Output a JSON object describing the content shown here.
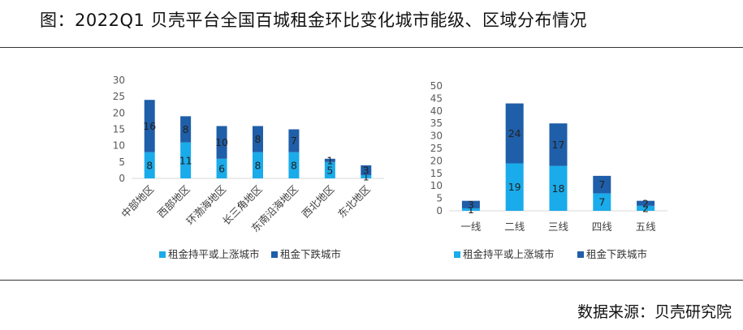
{
  "title": "图：2022Q1 贝壳平台全国百城租金环比变化城市能级、区域分布情况",
  "source": "数据来源：贝壳研究院",
  "colors": {
    "up": "#1aabea",
    "down": "#1f5ea8",
    "rule": "#333333"
  },
  "chart_data": [
    {
      "type": "bar",
      "stacked": true,
      "title": "",
      "xlabel": "",
      "ylabel": "",
      "categories": [
        "中部地区",
        "西部地区",
        "环渤海地区",
        "长三角地区",
        "东南沿海地区",
        "西北地区",
        "东北地区"
      ],
      "series": [
        {
          "name": "租金持平或上涨城市",
          "values": [
            8,
            11,
            6,
            8,
            8,
            5,
            1
          ]
        },
        {
          "name": "租金下跌城市",
          "values": [
            16,
            8,
            10,
            8,
            7,
            1,
            3
          ]
        }
      ],
      "ylim": [
        0,
        30
      ],
      "yticks": [
        0,
        5,
        10,
        15,
        20,
        25,
        30
      ],
      "grid": false,
      "legend": "bottom"
    },
    {
      "type": "bar",
      "stacked": true,
      "title": "",
      "xlabel": "",
      "ylabel": "",
      "categories": [
        "一线",
        "二线",
        "三线",
        "四线",
        "五线"
      ],
      "series": [
        {
          "name": "租金持平或上涨城市",
          "values": [
            1,
            19,
            18,
            7,
            2
          ]
        },
        {
          "name": "租金下跌城市",
          "values": [
            3,
            24,
            17,
            7,
            2
          ]
        }
      ],
      "ylim": [
        0,
        50
      ],
      "yticks": [
        0,
        5,
        10,
        15,
        20,
        25,
        30,
        35,
        40,
        45,
        50
      ],
      "grid": false,
      "legend": "bottom"
    }
  ]
}
